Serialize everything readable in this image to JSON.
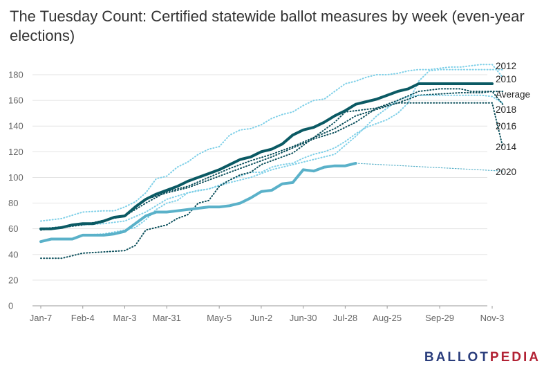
{
  "title": "The Tuesday Count: Certified statewide ballot measures by week (even-year elections)",
  "logo": {
    "part1": "BALLOT",
    "part2": "PEDIA"
  },
  "chart_data": {
    "type": "line",
    "x_ticks": [
      "Jan-7",
      "Feb-4",
      "Mar-3",
      "Mar-31",
      "May-5",
      "Jun-2",
      "Jun-30",
      "Jul-28",
      "Aug-25",
      "Sep-29",
      "Nov-3"
    ],
    "x_tick_weeks": [
      1,
      5,
      9,
      13,
      18,
      22,
      26,
      30,
      34,
      39,
      44
    ],
    "ylim": [
      0,
      180
    ],
    "y_ticks": [
      0,
      20,
      40,
      60,
      80,
      100,
      120,
      140,
      160,
      180
    ],
    "grid": true,
    "series": [
      {
        "name": "2012",
        "color": "#7fd0e8",
        "style": "dotted",
        "width": 2,
        "points": [
          [
            1,
            66
          ],
          [
            3,
            68
          ],
          [
            5,
            73
          ],
          [
            7,
            74
          ],
          [
            8,
            74
          ],
          [
            9,
            77
          ],
          [
            10,
            81
          ],
          [
            11,
            88
          ],
          [
            12,
            99
          ],
          [
            13,
            101
          ],
          [
            14,
            108
          ],
          [
            15,
            112
          ],
          [
            16,
            118
          ],
          [
            17,
            122
          ],
          [
            18,
            124
          ],
          [
            19,
            133
          ],
          [
            20,
            137
          ],
          [
            21,
            138
          ],
          [
            22,
            141
          ],
          [
            23,
            146
          ],
          [
            24,
            149
          ],
          [
            25,
            151
          ],
          [
            26,
            156
          ],
          [
            27,
            160
          ],
          [
            28,
            161
          ],
          [
            29,
            167
          ],
          [
            30,
            173
          ],
          [
            31,
            175
          ],
          [
            32,
            178
          ],
          [
            33,
            180
          ],
          [
            34,
            180
          ],
          [
            35,
            181
          ],
          [
            36,
            183
          ],
          [
            37,
            184
          ],
          [
            38,
            184
          ],
          [
            39,
            185
          ],
          [
            40,
            186
          ],
          [
            41,
            186
          ],
          [
            42,
            187
          ],
          [
            43,
            188
          ],
          [
            44,
            188
          ],
          [
            45,
            178
          ]
        ]
      },
      {
        "name": "2010",
        "color": "#7fd0e8",
        "style": "dotted",
        "width": 2,
        "points": [
          [
            5,
            55
          ],
          [
            7,
            56
          ],
          [
            9,
            59
          ],
          [
            10,
            61
          ],
          [
            11,
            67
          ],
          [
            12,
            75
          ],
          [
            13,
            80
          ],
          [
            14,
            82
          ],
          [
            15,
            88
          ],
          [
            16,
            90
          ],
          [
            17,
            91
          ],
          [
            18,
            94
          ],
          [
            19,
            98
          ],
          [
            20,
            101
          ],
          [
            21,
            104
          ],
          [
            22,
            104
          ],
          [
            23,
            108
          ],
          [
            24,
            110
          ],
          [
            25,
            111
          ],
          [
            26,
            115
          ],
          [
            27,
            118
          ],
          [
            28,
            120
          ],
          [
            29,
            123
          ],
          [
            30,
            128
          ],
          [
            31,
            134
          ],
          [
            32,
            139
          ],
          [
            33,
            142
          ],
          [
            34,
            145
          ],
          [
            35,
            150
          ],
          [
            36,
            158
          ],
          [
            37,
            175
          ],
          [
            38,
            183
          ],
          [
            39,
            184
          ],
          [
            40,
            184
          ],
          [
            41,
            184
          ],
          [
            42,
            184
          ],
          [
            43,
            184
          ],
          [
            44,
            184
          ],
          [
            45,
            184
          ]
        ]
      },
      {
        "name": "Average",
        "color": "#0b4f5b",
        "style": "dotted",
        "width": 2,
        "points": [
          [
            1,
            60
          ],
          [
            5,
            63
          ],
          [
            9,
            70
          ],
          [
            11,
            80
          ],
          [
            13,
            89
          ],
          [
            15,
            93
          ],
          [
            17,
            100
          ],
          [
            19,
            107
          ],
          [
            21,
            113
          ],
          [
            23,
            118
          ],
          [
            25,
            124
          ],
          [
            27,
            131
          ],
          [
            29,
            138
          ],
          [
            31,
            148
          ],
          [
            33,
            153
          ],
          [
            35,
            158
          ],
          [
            37,
            164
          ],
          [
            39,
            165
          ],
          [
            41,
            166
          ],
          [
            43,
            166
          ],
          [
            44,
            167
          ],
          [
            45,
            167
          ]
        ]
      },
      {
        "name": "2018",
        "color": "#7fd0e8",
        "style": "dotted",
        "width": 2,
        "points": [
          [
            5,
            63
          ],
          [
            7,
            64
          ],
          [
            9,
            66
          ],
          [
            11,
            73
          ],
          [
            13,
            83
          ],
          [
            15,
            88
          ],
          [
            17,
            91
          ],
          [
            19,
            96
          ],
          [
            21,
            100
          ],
          [
            23,
            106
          ],
          [
            25,
            110
          ],
          [
            27,
            114
          ],
          [
            29,
            118
          ],
          [
            31,
            132
          ],
          [
            33,
            148
          ],
          [
            35,
            160
          ],
          [
            36,
            163
          ],
          [
            37,
            164
          ],
          [
            39,
            164
          ],
          [
            41,
            164
          ],
          [
            43,
            164
          ],
          [
            44,
            163
          ],
          [
            45,
            158
          ]
        ]
      },
      {
        "name": "2016",
        "color": "#0b4f5b",
        "style": "dotted",
        "width": 2,
        "points": [
          [
            1,
            59
          ],
          [
            5,
            63
          ],
          [
            9,
            70
          ],
          [
            11,
            83
          ],
          [
            13,
            88
          ],
          [
            15,
            92
          ],
          [
            17,
            98
          ],
          [
            19,
            104
          ],
          [
            21,
            110
          ],
          [
            23,
            116
          ],
          [
            25,
            123
          ],
          [
            27,
            130
          ],
          [
            29,
            135
          ],
          [
            31,
            143
          ],
          [
            33,
            154
          ],
          [
            35,
            160
          ],
          [
            37,
            167
          ],
          [
            39,
            169
          ],
          [
            41,
            169
          ],
          [
            42,
            167
          ],
          [
            44,
            167
          ],
          [
            45,
            157
          ]
        ]
      },
      {
        "name": "2014",
        "color": "#0b4f5b",
        "style": "dotted",
        "width": 2,
        "points": [
          [
            1,
            37
          ],
          [
            3,
            37
          ],
          [
            5,
            41
          ],
          [
            7,
            42
          ],
          [
            9,
            43
          ],
          [
            10,
            47
          ],
          [
            11,
            59
          ],
          [
            12,
            61
          ],
          [
            13,
            63
          ],
          [
            14,
            68
          ],
          [
            15,
            71
          ],
          [
            16,
            80
          ],
          [
            17,
            82
          ],
          [
            18,
            93
          ],
          [
            19,
            98
          ],
          [
            20,
            102
          ],
          [
            21,
            104
          ],
          [
            22,
            110
          ],
          [
            23,
            113
          ],
          [
            24,
            116
          ],
          [
            25,
            119
          ],
          [
            26,
            125
          ],
          [
            27,
            131
          ],
          [
            28,
            137
          ],
          [
            29,
            143
          ],
          [
            30,
            151
          ],
          [
            31,
            152
          ],
          [
            32,
            153
          ],
          [
            33,
            154
          ],
          [
            34,
            156
          ],
          [
            35,
            158
          ],
          [
            36,
            158
          ],
          [
            38,
            158
          ],
          [
            40,
            158
          ],
          [
            42,
            158
          ],
          [
            44,
            158
          ],
          [
            45,
            124
          ]
        ]
      },
      {
        "name": "",
        "color": "#0b5a64",
        "style": "solid",
        "width": 4,
        "points": [
          [
            1,
            60
          ],
          [
            2,
            60
          ],
          [
            3,
            61
          ],
          [
            4,
            63
          ],
          [
            5,
            64
          ],
          [
            6,
            64
          ],
          [
            7,
            66
          ],
          [
            8,
            69
          ],
          [
            9,
            70
          ],
          [
            10,
            77
          ],
          [
            11,
            83
          ],
          [
            12,
            87
          ],
          [
            13,
            90
          ],
          [
            14,
            93
          ],
          [
            15,
            97
          ],
          [
            16,
            100
          ],
          [
            17,
            103
          ],
          [
            18,
            106
          ],
          [
            19,
            110
          ],
          [
            20,
            114
          ],
          [
            21,
            116
          ],
          [
            22,
            120
          ],
          [
            23,
            122
          ],
          [
            24,
            126
          ],
          [
            25,
            133
          ],
          [
            26,
            137
          ],
          [
            27,
            139
          ],
          [
            28,
            143
          ],
          [
            29,
            148
          ],
          [
            30,
            152
          ],
          [
            31,
            157
          ],
          [
            32,
            159
          ],
          [
            33,
            161
          ],
          [
            34,
            164
          ],
          [
            35,
            167
          ],
          [
            36,
            169
          ],
          [
            37,
            173
          ],
          [
            38,
            173
          ],
          [
            39,
            173
          ],
          [
            40,
            173
          ],
          [
            41,
            173
          ],
          [
            42,
            173
          ],
          [
            43,
            173
          ],
          [
            44,
            173
          ]
        ]
      },
      {
        "name": "2020",
        "color": "#5ab1c9",
        "style": "solid",
        "width": 4,
        "points": [
          [
            1,
            50
          ],
          [
            2,
            52
          ],
          [
            3,
            52
          ],
          [
            4,
            52
          ],
          [
            5,
            55
          ],
          [
            6,
            55
          ],
          [
            7,
            55
          ],
          [
            8,
            56
          ],
          [
            9,
            58
          ],
          [
            10,
            64
          ],
          [
            11,
            70
          ],
          [
            12,
            73
          ],
          [
            13,
            73
          ],
          [
            14,
            74
          ],
          [
            15,
            75
          ],
          [
            16,
            76
          ],
          [
            17,
            77
          ],
          [
            18,
            77
          ],
          [
            19,
            78
          ],
          [
            20,
            80
          ],
          [
            21,
            84
          ],
          [
            22,
            89
          ],
          [
            23,
            90
          ],
          [
            24,
            95
          ],
          [
            25,
            96
          ],
          [
            26,
            106
          ],
          [
            27,
            105
          ],
          [
            28,
            108
          ],
          [
            29,
            109
          ],
          [
            30,
            109
          ],
          [
            31,
            111
          ]
        ]
      }
    ],
    "projection_2020": {
      "color": "#5ab1c9",
      "points": [
        [
          31,
          111
        ],
        [
          45,
          105
        ]
      ]
    }
  }
}
